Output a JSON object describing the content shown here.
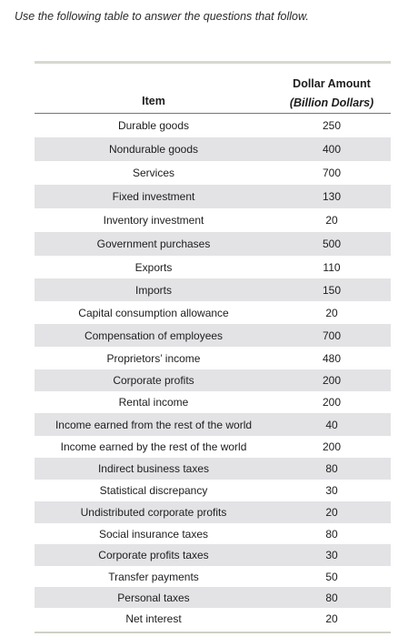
{
  "instruction": "Use the following table to answer the questions that follow.",
  "table": {
    "header_item": "Item",
    "header_amount": "Dollar Amount",
    "header_amount_unit": "(Billion Dollars)",
    "rows": [
      {
        "item": "Durable goods",
        "amount": "250"
      },
      {
        "item": "Nondurable goods",
        "amount": "400"
      },
      {
        "item": "Services",
        "amount": "700"
      },
      {
        "item": "Fixed investment",
        "amount": "130"
      },
      {
        "item": "Inventory investment",
        "amount": "20"
      },
      {
        "item": "Government purchases",
        "amount": "500"
      },
      {
        "item": "Exports",
        "amount": "110"
      },
      {
        "item": "Imports",
        "amount": "150"
      },
      {
        "item": "Capital consumption allowance",
        "amount": "20"
      },
      {
        "item": "Compensation of employees",
        "amount": "700"
      },
      {
        "item": "Proprietors’ income",
        "amount": "480"
      },
      {
        "item": "Corporate profits",
        "amount": "200"
      },
      {
        "item": "Rental income",
        "amount": "200"
      },
      {
        "item": "Income earned from the rest of the world",
        "amount": "40"
      },
      {
        "item": "Income earned by the rest of the world",
        "amount": "200"
      },
      {
        "item": "Indirect business taxes",
        "amount": "80"
      },
      {
        "item": "Statistical discrepancy",
        "amount": "30"
      },
      {
        "item": "Undistributed corporate profits",
        "amount": "20"
      },
      {
        "item": "Social insurance taxes",
        "amount": "80"
      },
      {
        "item": "Corporate profits taxes",
        "amount": "30"
      },
      {
        "item": "Transfer payments",
        "amount": "50"
      },
      {
        "item": "Personal taxes",
        "amount": "80"
      },
      {
        "item": "Net interest",
        "amount": "20"
      }
    ]
  }
}
